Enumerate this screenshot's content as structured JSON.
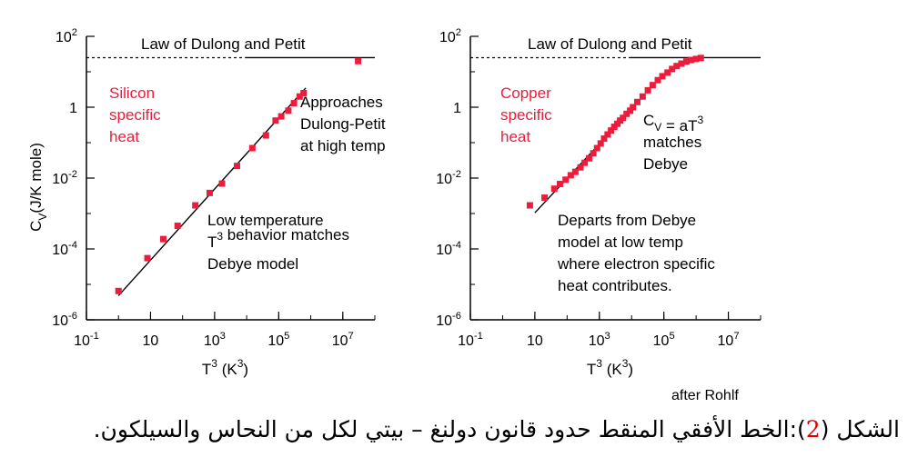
{
  "chart_data": [
    {
      "type": "scatter",
      "x_scale": "log",
      "y_scale": "log",
      "xlabel_base": "T",
      "xlabel_sup": "3",
      "xlabel_mid": " (K",
      "xlabel_sup2": "3",
      "xlabel_end": ")",
      "ylabel_base": "C",
      "ylabel_sub": "V",
      "ylabel_rest": "(J/K mole)",
      "xlim": [
        0.1,
        100000000
      ],
      "ylim": [
        1e-06,
        100
      ],
      "x_ticks": [
        {
          "value": 0.1,
          "base": "10",
          "sup": "-1"
        },
        {
          "value": 10,
          "base": "10",
          "sup": ""
        },
        {
          "value": 1000,
          "base": "10",
          "sup": "3"
        },
        {
          "value": 100000,
          "base": "10",
          "sup": "5"
        },
        {
          "value": 10000000,
          "base": "10",
          "sup": "7"
        }
      ],
      "y_ticks": [
        {
          "value": 100,
          "base": "10",
          "sup": "2"
        },
        {
          "value": 1,
          "base": "1",
          "sup": ""
        },
        {
          "value": 0.01,
          "base": "10",
          "sup": "-2"
        },
        {
          "value": 0.0001,
          "base": "10",
          "sup": "-4"
        },
        {
          "value": 1e-06,
          "base": "10",
          "sup": "-6"
        }
      ],
      "dulong_petit": {
        "value": 25,
        "label": "Law of Dulong and Petit"
      },
      "material_label": [
        "Silicon",
        "specific",
        "heat"
      ],
      "annotations": [
        {
          "id": "high",
          "lines": [
            "Approaches",
            "Dulong-Petit",
            "at high temp"
          ]
        },
        {
          "id": "low",
          "lines": [
            "Low temperature",
            "T^3 behavior matches",
            "Debye model"
          ]
        }
      ],
      "series": [
        {
          "marker": "square",
          "color": "#ee1c3c",
          "x": [
            1,
            8,
            25,
            70,
            250,
            700,
            1700,
            5000,
            15000,
            40000,
            80000,
            120000,
            200000,
            300000,
            450000,
            600000,
            30000000
          ],
          "y": [
            6.5e-06,
            5.5e-05,
            0.00019,
            0.00045,
            0.0017,
            0.0038,
            0.007,
            0.022,
            0.07,
            0.16,
            0.42,
            0.55,
            0.8,
            1.3,
            2.0,
            2.5,
            20
          ]
        }
      ],
      "debye_line": {
        "x": [
          1,
          700000
        ],
        "y": [
          4.8e-06,
          3.5
        ]
      }
    },
    {
      "type": "scatter",
      "x_scale": "log",
      "y_scale": "log",
      "xlabel_base": "T",
      "xlabel_sup": "3",
      "xlabel_mid": " (K",
      "xlabel_sup2": "3",
      "xlabel_end": ")",
      "xlim": [
        0.1,
        100000000
      ],
      "ylim": [
        1e-06,
        100
      ],
      "x_ticks": [
        {
          "value": 0.1,
          "base": "10",
          "sup": "-1"
        },
        {
          "value": 10,
          "base": "10",
          "sup": ""
        },
        {
          "value": 1000,
          "base": "10",
          "sup": "3"
        },
        {
          "value": 100000,
          "base": "10",
          "sup": "5"
        },
        {
          "value": 10000000,
          "base": "10",
          "sup": "7"
        }
      ],
      "y_ticks": [
        {
          "value": 100,
          "base": "10",
          "sup": "2"
        },
        {
          "value": 1,
          "base": "1",
          "sup": ""
        },
        {
          "value": 0.01,
          "base": "10",
          "sup": "-2"
        },
        {
          "value": 0.0001,
          "base": "10",
          "sup": "-4"
        },
        {
          "value": 1e-06,
          "base": "10",
          "sup": "-6"
        }
      ],
      "dulong_petit": {
        "value": 25,
        "label": "Law of Dulong and Petit"
      },
      "material_label": [
        "Copper",
        "specific",
        "heat"
      ],
      "annotations": [
        {
          "id": "cv",
          "lines": [
            "C_V = aT^3",
            "matches",
            "Debye"
          ]
        },
        {
          "id": "depart",
          "lines": [
            "Departs from Debye",
            "model at low temp",
            "where electron specific",
            "heat contributes."
          ]
        }
      ],
      "series": [
        {
          "marker": "square",
          "color": "#ee1c3c",
          "x": [
            7,
            20,
            40,
            60,
            90,
            130,
            180,
            260,
            350,
            480,
            650,
            850,
            1100,
            1400,
            1800,
            2300,
            2900,
            3600,
            4400,
            5400,
            7000,
            9000,
            11000,
            15000,
            22000,
            32000,
            45000,
            65000,
            90000,
            130000,
            180000,
            250000,
            350000,
            500000,
            700000,
            1000000,
            1400000
          ],
          "y": [
            0.0017,
            0.0028,
            0.005,
            0.0068,
            0.009,
            0.012,
            0.015,
            0.02,
            0.027,
            0.036,
            0.05,
            0.07,
            0.095,
            0.13,
            0.17,
            0.22,
            0.28,
            0.34,
            0.42,
            0.5,
            0.65,
            0.8,
            1.0,
            1.4,
            2.0,
            3.0,
            4.2,
            5.8,
            7.5,
            9.5,
            12,
            14.5,
            17,
            19.5,
            21.5,
            23,
            24.5
          ]
        }
      ],
      "debye_line": {
        "x": [
          10,
          7000
        ],
        "y": [
          0.00105,
          0.6
        ]
      }
    }
  ],
  "credit": "after Rohlf",
  "caption": {
    "prefix": "الشكل (",
    "number": "2",
    "suffix": "):الخط الأفقي المنقط حدود قانون دولنغ – بيتي لكل من النحاس والسيلكون."
  }
}
